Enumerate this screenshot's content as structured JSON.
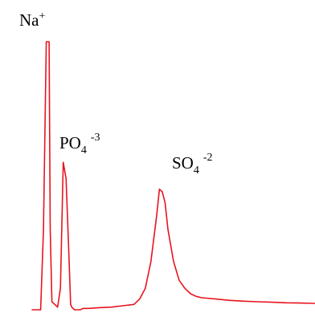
{
  "chart_data": {
    "type": "line",
    "title": "",
    "xlabel": "",
    "ylabel": "",
    "grid": false,
    "legend": "none",
    "line_color": "#e8141e",
    "y_range": [
      0,
      100
    ],
    "series": [
      {
        "x": [
          0,
          3,
          4,
          5,
          6,
          6.4,
          7,
          8,
          9,
          10,
          11,
          12,
          13,
          13.6,
          14,
          15,
          16,
          17,
          18,
          20,
          24,
          28,
          32,
          36,
          38,
          40,
          42,
          44,
          45,
          46,
          47,
          48,
          50,
          52,
          54,
          56,
          58,
          60,
          65,
          70,
          75,
          80,
          85,
          90,
          95,
          100
        ],
        "y": [
          0,
          0,
          30,
          100,
          100,
          30,
          3,
          2,
          1,
          8,
          55,
          49,
          20,
          2,
          1,
          0,
          0,
          0,
          0.5,
          0.5,
          0.8,
          1,
          1.5,
          2,
          4,
          8,
          18,
          35,
          45,
          44,
          40,
          30,
          18,
          11,
          8,
          6,
          5,
          4.5,
          4,
          3.5,
          3.2,
          3,
          2.8,
          2.6,
          2.5,
          2.4
        ]
      }
    ],
    "annotations": [
      {
        "main": "Na",
        "sub": "",
        "sup": "+"
      },
      {
        "main": "PO",
        "sub": "4",
        "sup": "-3"
      },
      {
        "main": "SO",
        "sub": "4",
        "sup": "-2"
      }
    ]
  }
}
